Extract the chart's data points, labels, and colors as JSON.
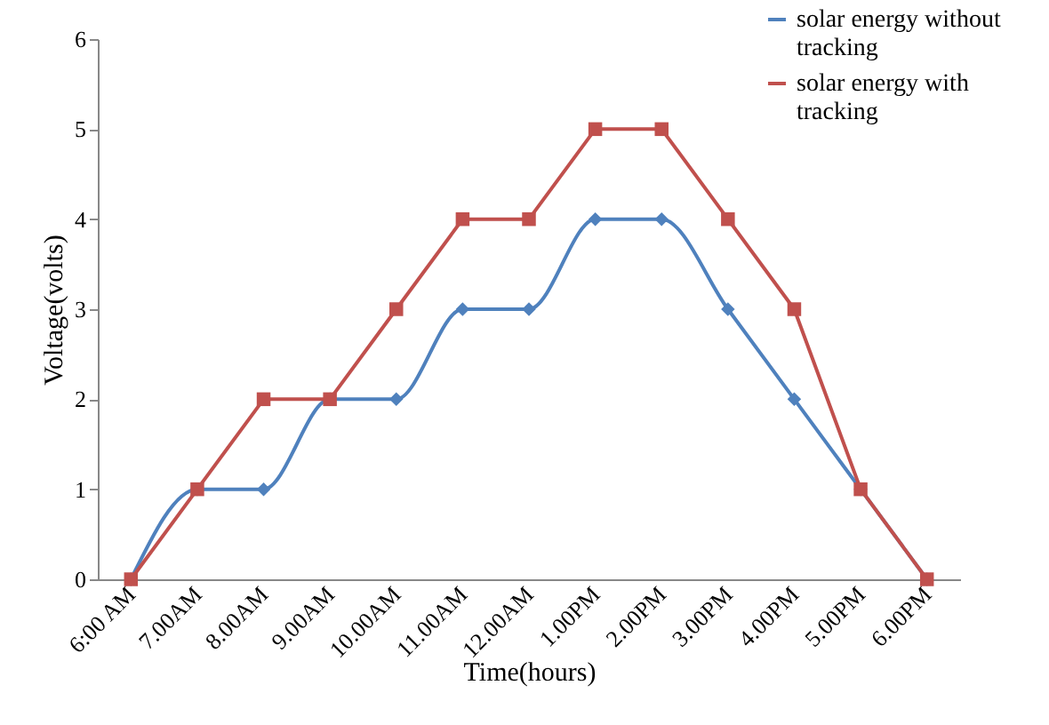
{
  "chart_data": {
    "type": "line",
    "xlabel": "Time(hours)",
    "ylabel": "Voltage(volts)",
    "categories": [
      "6:00 AM",
      "7.00AM",
      "8.00AM",
      "9.00AM",
      "10.00AM",
      "11.00AM",
      "12.00AM",
      "1.00PM",
      "2.00PM",
      "3.00PM",
      "4.00PM",
      "5.00PM",
      "6.00PM"
    ],
    "series": [
      {
        "name": "solar energy without tracking",
        "color": "#4f81bd",
        "marker": "diamond",
        "values": [
          0,
          1,
          1,
          2,
          2,
          3,
          3,
          4,
          4,
          3,
          2,
          1,
          0
        ]
      },
      {
        "name": "solar energy with tracking",
        "color": "#c0504d",
        "marker": "square",
        "values": [
          0,
          1,
          2,
          2,
          3,
          4,
          4,
          5,
          5,
          4,
          3,
          1,
          0
        ]
      }
    ],
    "ylim": [
      0,
      6
    ],
    "yticks": [
      0,
      1,
      2,
      3,
      4,
      5,
      6
    ],
    "grid": false,
    "legend": "top right"
  }
}
